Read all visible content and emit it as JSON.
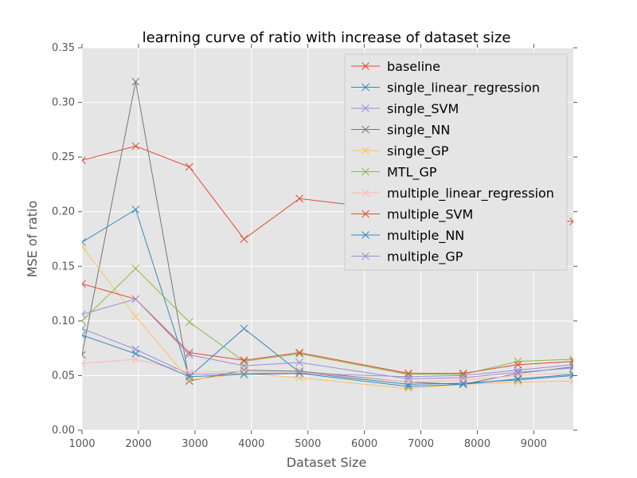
{
  "chart_data": {
    "type": "line",
    "title": "learning curve of ratio with increase of dataset size",
    "xlabel": "Dataset Size",
    "ylabel": "MSE of ratio",
    "xlim": [
      1000,
      9700
    ],
    "ylim": [
      0,
      0.35
    ],
    "xticks": [
      "1000",
      "2000",
      "3000",
      "4000",
      "5000",
      "6000",
      "7000",
      "8000",
      "9000"
    ],
    "yticks": [
      "0.00",
      "0.05",
      "0.10",
      "0.15",
      "0.20",
      "0.25",
      "0.30",
      "0.35"
    ],
    "grid": true,
    "legend_position": "top-right",
    "background": "#e5e5e5",
    "marker": "x",
    "x": [
      1000,
      1950,
      2900,
      3870,
      4850,
      6780,
      7750,
      8720,
      9700
    ],
    "series": [
      {
        "name": "baseline",
        "color": "#e24a33",
        "values": [
          0.247,
          0.26,
          0.241,
          0.175,
          0.212,
          0.2,
          0.195,
          0.193,
          0.191
        ]
      },
      {
        "name": "single_linear_regression",
        "color": "#348abd",
        "values": [
          0.172,
          0.202,
          0.049,
          0.093,
          0.053,
          0.042,
          0.043,
          0.046,
          0.05
        ]
      },
      {
        "name": "single_SVM",
        "color": "#988ed5",
        "values": [
          0.093,
          0.074,
          0.051,
          0.052,
          0.052,
          0.049,
          0.05,
          0.055,
          0.06
        ]
      },
      {
        "name": "single_NN",
        "color": "#777777",
        "values": [
          0.069,
          0.319,
          0.045,
          0.055,
          0.054,
          0.044,
          0.042,
          0.052,
          0.058
        ]
      },
      {
        "name": "single_GP",
        "color": "#fbc15e",
        "values": [
          0.168,
          0.104,
          0.046,
          0.052,
          0.048,
          0.038,
          0.042,
          0.044,
          0.045
        ]
      },
      {
        "name": "MTL_GP",
        "color": "#8eba42",
        "values": [
          0.1,
          0.148,
          0.099,
          0.063,
          0.07,
          0.051,
          0.051,
          0.063,
          0.065
        ]
      },
      {
        "name": "multiple_linear_regression",
        "color": "#ffb5b8",
        "values": [
          0.061,
          0.065,
          0.053,
          0.054,
          0.053,
          0.044,
          0.046,
          0.05,
          0.052
        ]
      },
      {
        "name": "multiple_SVM",
        "color": "#e24a33",
        "values": [
          0.134,
          0.12,
          0.071,
          0.064,
          0.071,
          0.052,
          0.052,
          0.06,
          0.063
        ]
      },
      {
        "name": "multiple_NN",
        "color": "#348abd",
        "values": [
          0.087,
          0.07,
          0.049,
          0.051,
          0.052,
          0.04,
          0.042,
          0.047,
          0.051
        ]
      },
      {
        "name": "multiple_GP",
        "color": "#988ed5",
        "values": [
          0.106,
          0.12,
          0.069,
          0.059,
          0.062,
          0.047,
          0.048,
          0.053,
          0.057
        ]
      }
    ]
  }
}
